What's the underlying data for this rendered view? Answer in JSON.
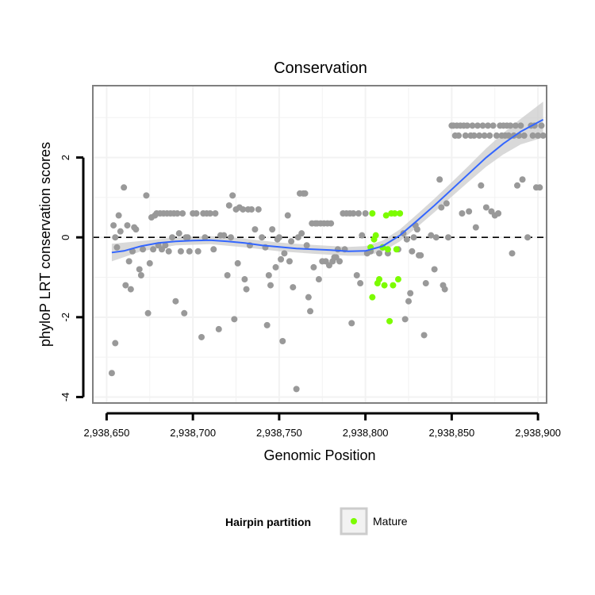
{
  "chart_data": {
    "type": "scatter",
    "title": "Conservation",
    "xlabel": "Genomic Position",
    "ylabel": "phyloP LRT conservation scores",
    "xlim": [
      2938642,
      2938905
    ],
    "ylim": [
      -4.15,
      3.8
    ],
    "x_ticks": [
      2938650,
      2938700,
      2938750,
      2938800,
      2938850,
      2938900
    ],
    "x_tick_labels": [
      "2,938,650",
      "2,938,700",
      "2,938,750",
      "2,938,800",
      "2,938,850",
      "2,938,900"
    ],
    "y_ticks": [
      -4,
      -2,
      0,
      2
    ],
    "y_tick_labels": [
      "-4",
      "-2",
      "0",
      "2"
    ],
    "reference_line_y": 0,
    "grid": true,
    "legend": {
      "title": "Hairpin partition",
      "position": "bottom",
      "entries": [
        {
          "label": "Mature",
          "color": "#7CFC00"
        }
      ]
    },
    "colors": {
      "other": "#999999",
      "mature": "#7CFC00",
      "smooth": "#3366FF",
      "ribbon": "#cccccc",
      "panel_border": "#7f7f7f",
      "grid": "#f2f2f2"
    },
    "series": [
      {
        "type": "scatter",
        "category": "other",
        "points": [
          [
            2938653,
            -3.4
          ],
          [
            2938654,
            0.3
          ],
          [
            2938655,
            -2.65
          ],
          [
            2938655,
            0
          ],
          [
            2938656,
            -0.25
          ],
          [
            2938657,
            0.55
          ],
          [
            2938658,
            0.15
          ],
          [
            2938660,
            1.25
          ],
          [
            2938661,
            -1.2
          ],
          [
            2938662,
            0.3
          ],
          [
            2938663,
            -0.6
          ],
          [
            2938664,
            -1.3
          ],
          [
            2938665,
            -0.35
          ],
          [
            2938666,
            0.25
          ],
          [
            2938667,
            0.2
          ],
          [
            2938669,
            -0.8
          ],
          [
            2938670,
            -0.95
          ],
          [
            2938671,
            -0.3
          ],
          [
            2938673,
            1.05
          ],
          [
            2938674,
            -1.9
          ],
          [
            2938675,
            -0.65
          ],
          [
            2938676,
            0.5
          ],
          [
            2938677,
            -0.3
          ],
          [
            2938678,
            0.55
          ],
          [
            2938679,
            0.6
          ],
          [
            2938680,
            -0.2
          ],
          [
            2938681,
            0.6
          ],
          [
            2938682,
            -0.3
          ],
          [
            2938683,
            0.6
          ],
          [
            2938684,
            -0.2
          ],
          [
            2938685,
            0.6
          ],
          [
            2938686,
            -0.35
          ],
          [
            2938687,
            0.6
          ],
          [
            2938688,
            0
          ],
          [
            2938689,
            0.6
          ],
          [
            2938690,
            -1.6
          ],
          [
            2938691,
            0.6
          ],
          [
            2938692,
            0.1
          ],
          [
            2938693,
            -0.35
          ],
          [
            2938694,
            0.6
          ],
          [
            2938695,
            -1.9
          ],
          [
            2938696,
            0
          ],
          [
            2938697,
            0
          ],
          [
            2938698,
            -0.35
          ],
          [
            2938700,
            0.6
          ],
          [
            2938702,
            0.6
          ],
          [
            2938703,
            -0.35
          ],
          [
            2938705,
            -2.5
          ],
          [
            2938706,
            0.6
          ],
          [
            2938707,
            0
          ],
          [
            2938708,
            0.6
          ],
          [
            2938710,
            0.6
          ],
          [
            2938712,
            -0.3
          ],
          [
            2938713,
            0.6
          ],
          [
            2938715,
            -2.3
          ],
          [
            2938716,
            0.05
          ],
          [
            2938718,
            0.05
          ],
          [
            2938720,
            -0.95
          ],
          [
            2938721,
            0.8
          ],
          [
            2938722,
            0
          ],
          [
            2938723,
            1.05
          ],
          [
            2938724,
            -2.05
          ],
          [
            2938725,
            0.7
          ],
          [
            2938726,
            -0.65
          ],
          [
            2938727,
            0.75
          ],
          [
            2938729,
            0.7
          ],
          [
            2938730,
            -1.05
          ],
          [
            2938731,
            -1.3
          ],
          [
            2938732,
            0.7
          ],
          [
            2938733,
            -0.2
          ],
          [
            2938734,
            0.7
          ],
          [
            2938736,
            0.2
          ],
          [
            2938738,
            0.7
          ],
          [
            2938740,
            0
          ],
          [
            2938742,
            -0.25
          ],
          [
            2938743,
            -2.2
          ],
          [
            2938744,
            -0.95
          ],
          [
            2938745,
            -1.2
          ],
          [
            2938746,
            0.2
          ],
          [
            2938748,
            -0.75
          ],
          [
            2938749,
            -0.05
          ],
          [
            2938750,
            0
          ],
          [
            2938751,
            -0.55
          ],
          [
            2938752,
            -2.6
          ],
          [
            2938753,
            -0.4
          ],
          [
            2938755,
            0.55
          ],
          [
            2938756,
            -0.6
          ],
          [
            2938757,
            -0.1
          ],
          [
            2938758,
            -1.25
          ],
          [
            2938760,
            -3.8
          ],
          [
            2938761,
            0
          ],
          [
            2938762,
            1.1
          ],
          [
            2938763,
            0.1
          ],
          [
            2938764,
            1.1
          ],
          [
            2938765,
            1.1
          ],
          [
            2938766,
            -0.2
          ],
          [
            2938767,
            -1.5
          ],
          [
            2938768,
            -1.85
          ],
          [
            2938769,
            0.35
          ],
          [
            2938770,
            -0.75
          ],
          [
            2938771,
            0.35
          ],
          [
            2938772,
            0.35
          ],
          [
            2938773,
            -1.05
          ],
          [
            2938774,
            0.35
          ],
          [
            2938775,
            -0.6
          ],
          [
            2938776,
            0.35
          ],
          [
            2938777,
            -0.6
          ],
          [
            2938778,
            0.35
          ],
          [
            2938779,
            -0.7
          ],
          [
            2938780,
            0.35
          ],
          [
            2938781,
            -0.6
          ],
          [
            2938782,
            -0.5
          ],
          [
            2938783,
            -0.5
          ],
          [
            2938784,
            -0.3
          ],
          [
            2938785,
            -0.6
          ],
          [
            2938787,
            0.6
          ],
          [
            2938788,
            -0.3
          ],
          [
            2938789,
            0.6
          ],
          [
            2938791,
            0.6
          ],
          [
            2938792,
            -2.15
          ],
          [
            2938793,
            0.6
          ],
          [
            2938795,
            -0.95
          ],
          [
            2938796,
            0.6
          ],
          [
            2938797,
            -1.15
          ],
          [
            2938798,
            0.05
          ],
          [
            2938800,
            0.6
          ],
          [
            2938801,
            -0.4
          ],
          [
            2938803,
            -0.35
          ],
          [
            2938808,
            -0.4
          ],
          [
            2938810,
            -0.25
          ],
          [
            2938813,
            -0.4
          ],
          [
            2938819,
            -0.3
          ],
          [
            2938822,
            0.1
          ],
          [
            2938823,
            -2.05
          ],
          [
            2938824,
            -0.05
          ],
          [
            2938825,
            -1.6
          ],
          [
            2938826,
            -1.4
          ],
          [
            2938827,
            -0.35
          ],
          [
            2938828,
            0
          ],
          [
            2938829,
            0.3
          ],
          [
            2938830,
            0.2
          ],
          [
            2938831,
            -0.45
          ],
          [
            2938832,
            -0.45
          ],
          [
            2938834,
            -2.45
          ],
          [
            2938835,
            -1.15
          ],
          [
            2938838,
            0.05
          ],
          [
            2938840,
            -0.8
          ],
          [
            2938841,
            0
          ],
          [
            2938843,
            1.45
          ],
          [
            2938844,
            0.75
          ],
          [
            2938845,
            -1.2
          ],
          [
            2938846,
            -1.3
          ],
          [
            2938847,
            0.85
          ],
          [
            2938848,
            0
          ],
          [
            2938850,
            2.8
          ],
          [
            2938851,
            2.8
          ],
          [
            2938852,
            2.55
          ],
          [
            2938853,
            2.8
          ],
          [
            2938854,
            2.55
          ],
          [
            2938855,
            2.8
          ],
          [
            2938856,
            0.6
          ],
          [
            2938857,
            2.8
          ],
          [
            2938858,
            2.55
          ],
          [
            2938859,
            2.8
          ],
          [
            2938860,
            0.65
          ],
          [
            2938861,
            2.55
          ],
          [
            2938862,
            2.8
          ],
          [
            2938863,
            2.55
          ],
          [
            2938864,
            0.25
          ],
          [
            2938865,
            2.8
          ],
          [
            2938866,
            2.55
          ],
          [
            2938867,
            1.3
          ],
          [
            2938868,
            2.8
          ],
          [
            2938869,
            2.55
          ],
          [
            2938870,
            0.75
          ],
          [
            2938871,
            2.8
          ],
          [
            2938872,
            2.55
          ],
          [
            2938873,
            0.65
          ],
          [
            2938874,
            2.8
          ],
          [
            2938875,
            0.55
          ],
          [
            2938876,
            2.55
          ],
          [
            2938877,
            0.6
          ],
          [
            2938878,
            2.8
          ],
          [
            2938879,
            2.55
          ],
          [
            2938880,
            2.8
          ],
          [
            2938881,
            2.55
          ],
          [
            2938882,
            2.8
          ],
          [
            2938883,
            2.55
          ],
          [
            2938884,
            2.8
          ],
          [
            2938885,
            -0.4
          ],
          [
            2938886,
            2.55
          ],
          [
            2938887,
            2.8
          ],
          [
            2938888,
            1.3
          ],
          [
            2938889,
            2.55
          ],
          [
            2938890,
            2.8
          ],
          [
            2938891,
            1.45
          ],
          [
            2938892,
            2.55
          ],
          [
            2938894,
            0
          ],
          [
            2938896,
            2.8
          ],
          [
            2938897,
            2.55
          ],
          [
            2938898,
            2.8
          ],
          [
            2938899,
            1.25
          ],
          [
            2938900,
            2.55
          ],
          [
            2938901,
            1.25
          ],
          [
            2938902,
            2.8
          ],
          [
            2938903,
            2.55
          ]
        ]
      },
      {
        "type": "scatter",
        "category": "mature",
        "name": "Mature",
        "points": [
          [
            2938803,
            -0.25
          ],
          [
            2938804,
            -1.5
          ],
          [
            2938804,
            0.6
          ],
          [
            2938805,
            -0.05
          ],
          [
            2938806,
            0.05
          ],
          [
            2938807,
            -1.15
          ],
          [
            2938808,
            -1.05
          ],
          [
            2938810,
            -0.25
          ],
          [
            2938811,
            -1.2
          ],
          [
            2938812,
            0.55
          ],
          [
            2938813,
            -0.3
          ],
          [
            2938814,
            -2.1
          ],
          [
            2938815,
            0.6
          ],
          [
            2938816,
            -1.2
          ],
          [
            2938817,
            0.6
          ],
          [
            2938818,
            -0.3
          ],
          [
            2938819,
            -1.05
          ],
          [
            2938820,
            0.6
          ]
        ]
      },
      {
        "type": "smooth",
        "category": "smooth",
        "points": [
          [
            2938653,
            -0.38
          ],
          [
            2938660,
            -0.34
          ],
          [
            2938670,
            -0.22
          ],
          [
            2938680,
            -0.14
          ],
          [
            2938690,
            -0.1
          ],
          [
            2938700,
            -0.08
          ],
          [
            2938710,
            -0.07
          ],
          [
            2938720,
            -0.1
          ],
          [
            2938730,
            -0.14
          ],
          [
            2938740,
            -0.2
          ],
          [
            2938750,
            -0.24
          ],
          [
            2938760,
            -0.28
          ],
          [
            2938770,
            -0.3
          ],
          [
            2938780,
            -0.32
          ],
          [
            2938790,
            -0.35
          ],
          [
            2938800,
            -0.34
          ],
          [
            2938810,
            -0.22
          ],
          [
            2938820,
            0.05
          ],
          [
            2938830,
            0.42
          ],
          [
            2938840,
            0.8
          ],
          [
            2938850,
            1.2
          ],
          [
            2938860,
            1.6
          ],
          [
            2938870,
            2.0
          ],
          [
            2938880,
            2.35
          ],
          [
            2938890,
            2.65
          ],
          [
            2938903,
            2.95
          ]
        ],
        "band": [
          [
            2938653,
            -0.6,
            -0.16
          ],
          [
            2938670,
            -0.35,
            -0.09
          ],
          [
            2938690,
            -0.2,
            0.0
          ],
          [
            2938710,
            -0.17,
            0.03
          ],
          [
            2938730,
            -0.25,
            -0.03
          ],
          [
            2938750,
            -0.35,
            -0.13
          ],
          [
            2938770,
            -0.41,
            -0.19
          ],
          [
            2938790,
            -0.46,
            -0.24
          ],
          [
            2938800,
            -0.46,
            -0.22
          ],
          [
            2938810,
            -0.36,
            -0.08
          ],
          [
            2938820,
            -0.1,
            0.2
          ],
          [
            2938830,
            0.26,
            0.58
          ],
          [
            2938840,
            0.63,
            0.97
          ],
          [
            2938850,
            1.02,
            1.38
          ],
          [
            2938860,
            1.4,
            1.8
          ],
          [
            2938870,
            1.77,
            2.23
          ],
          [
            2938880,
            2.08,
            2.62
          ],
          [
            2938890,
            2.33,
            2.97
          ],
          [
            2938903,
            2.5,
            3.4
          ]
        ]
      }
    ]
  }
}
